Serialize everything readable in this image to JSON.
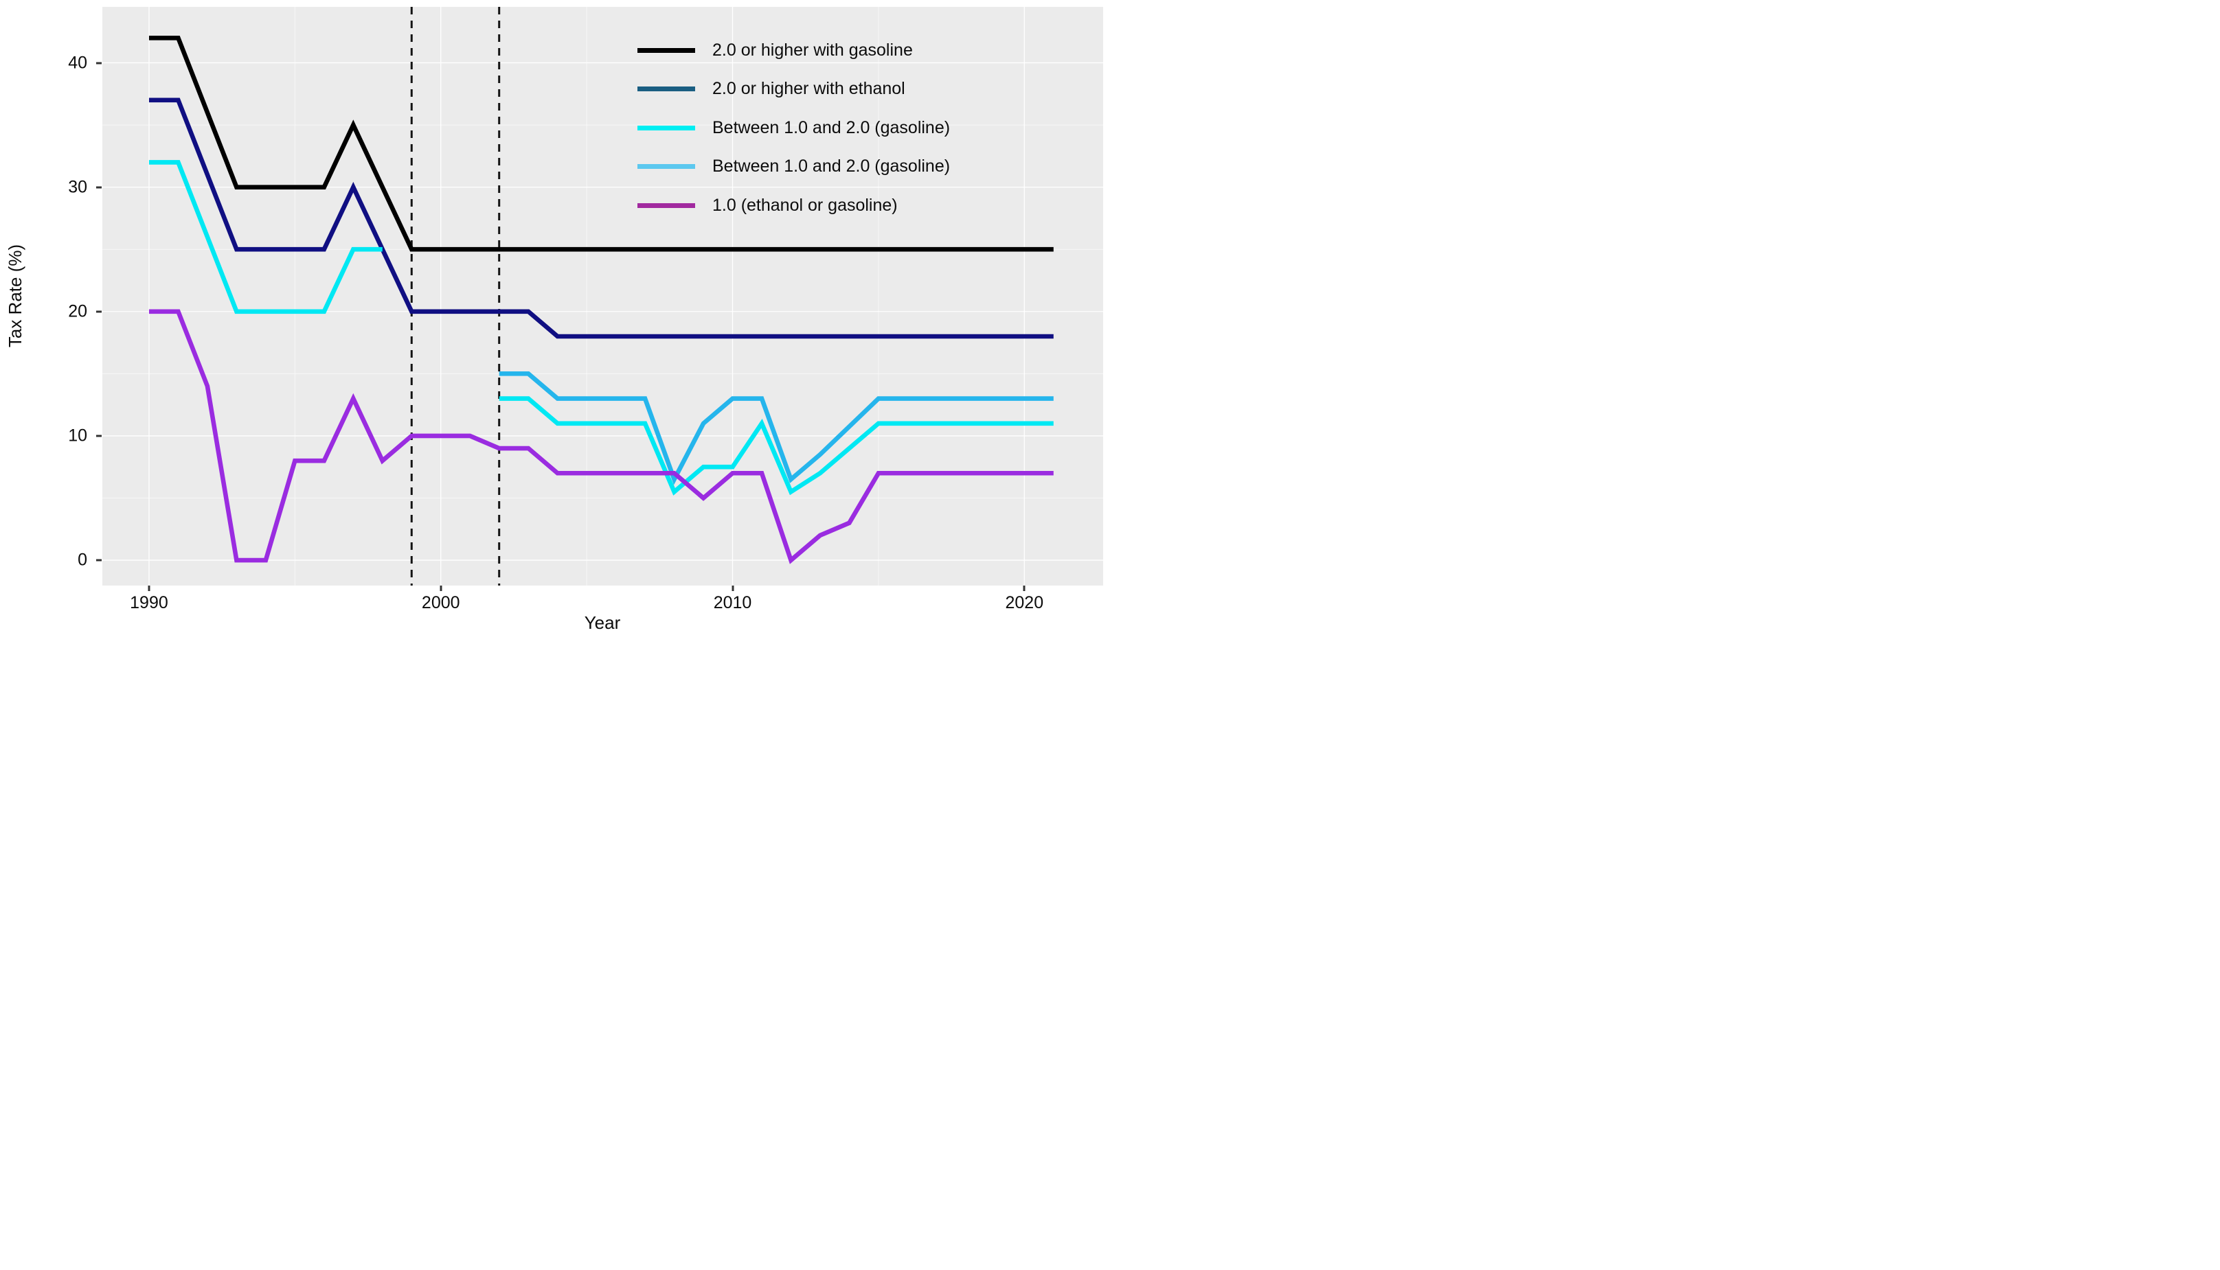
{
  "chart_data": {
    "type": "line",
    "title": "",
    "xlabel": "Year",
    "ylabel": "Tax Rate (%)",
    "x_ticks": [
      1990,
      2000,
      2010,
      2020
    ],
    "y_ticks": [
      0,
      10,
      20,
      30,
      40
    ],
    "x_minor_gridlines": [
      1995,
      2005,
      2015
    ],
    "y_minor_gridlines": [
      5,
      15,
      25,
      35
    ],
    "xlim": [
      1988.4,
      2022.7
    ],
    "ylim": [
      -2.04,
      44.5
    ],
    "grid": "on",
    "legend_position": "top-right-inside",
    "panel_bg_color": "#EBEBEB",
    "grid_color": "#FFFFFF",
    "dashed_vlines": [
      1999,
      2002
    ],
    "dashed_vline_color": "#141414",
    "line_width": 6.6,
    "series": [
      {
        "name": "2.0 or higher with gasoline",
        "line_color": "#000000",
        "legend_color": "#000000",
        "segments": [
          [
            [
              1990,
              42
            ],
            [
              1991,
              42
            ],
            [
              1993,
              30
            ],
            [
              1996,
              30
            ],
            [
              1997,
              35
            ],
            [
              1999,
              25
            ],
            [
              2021,
              25
            ]
          ]
        ]
      },
      {
        "name": "2.0 or higher with ethanol",
        "line_color": "#100F82",
        "legend_color": "#1A5E82",
        "segments": [
          [
            [
              1990,
              37
            ],
            [
              1991,
              37
            ],
            [
              1993,
              25
            ],
            [
              1996,
              25
            ],
            [
              1997,
              30
            ],
            [
              1999,
              20
            ],
            [
              2003,
              20
            ],
            [
              2004,
              18
            ],
            [
              2021,
              18
            ]
          ]
        ]
      },
      {
        "name": "Between 1.0 and 2.0 (gasoline)",
        "line_color": "#00E8F3",
        "legend_color": "#00EEF2",
        "segments": [
          [
            [
              1990,
              32
            ],
            [
              1991,
              32
            ],
            [
              1993,
              20
            ],
            [
              1996,
              20
            ],
            [
              1997,
              25
            ],
            [
              1998,
              25
            ]
          ],
          [
            [
              2002,
              13
            ],
            [
              2003,
              13
            ],
            [
              2004,
              11
            ],
            [
              2007,
              11
            ],
            [
              2008,
              5.5
            ],
            [
              2009,
              7.5
            ],
            [
              2010,
              7.5
            ],
            [
              2011,
              11
            ],
            [
              2012,
              5.5
            ],
            [
              2013,
              7
            ],
            [
              2015,
              11
            ],
            [
              2021,
              11
            ]
          ]
        ]
      },
      {
        "name": "Between 1.0 and 2.0 (gasoline)",
        "line_color": "#25B5EC",
        "legend_color": "#5CC8EF",
        "segments": [
          [
            [
              2002,
              15
            ],
            [
              2003,
              15
            ],
            [
              2004,
              13
            ],
            [
              2007,
              13
            ],
            [
              2008,
              6.5
            ],
            [
              2009,
              11
            ],
            [
              2010,
              13
            ],
            [
              2011,
              13
            ],
            [
              2012,
              6.5
            ],
            [
              2013,
              8.5
            ],
            [
              2015,
              13
            ],
            [
              2021,
              13
            ]
          ]
        ]
      },
      {
        "name": "1.0 (ethanol or gasoline)",
        "line_color": "#9A2CE0",
        "legend_color": "#A1299F",
        "segments": [
          [
            [
              1990,
              20
            ],
            [
              1991,
              20
            ],
            [
              1992,
              14
            ],
            [
              1993,
              0
            ],
            [
              1994,
              0
            ],
            [
              1995,
              8
            ],
            [
              1996,
              8
            ],
            [
              1997,
              13
            ],
            [
              1998,
              8
            ],
            [
              1999,
              10
            ],
            [
              2001,
              10
            ],
            [
              2002,
              9
            ],
            [
              2003,
              9
            ],
            [
              2004,
              7
            ],
            [
              2008,
              7
            ],
            [
              2009,
              5
            ],
            [
              2010,
              7
            ],
            [
              2011,
              7
            ],
            [
              2012,
              0
            ],
            [
              2013,
              2
            ],
            [
              2014,
              3
            ],
            [
              2015,
              7
            ],
            [
              2021,
              7
            ]
          ]
        ]
      }
    ]
  }
}
